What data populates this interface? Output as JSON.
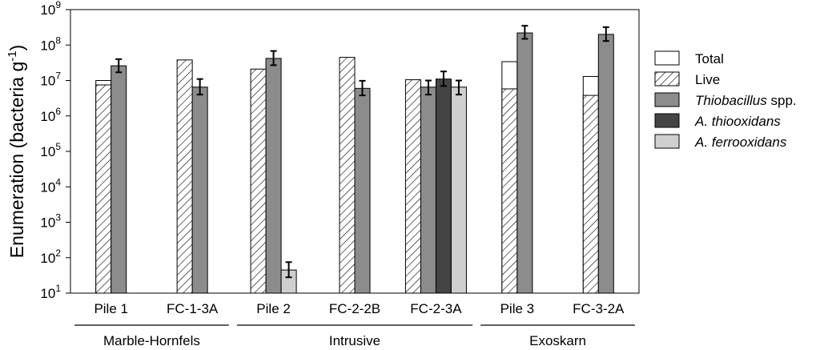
{
  "chart_data": {
    "type": "bar",
    "yscale": "log",
    "ylabel": "Enumeration (bacteria g",
    "ylabel_sup": "-1",
    "ylabel_close": ")",
    "ylim": [
      10,
      1000000000
    ],
    "ytick_base": "10",
    "ytick_exponents": [
      "1",
      "2",
      "3",
      "4",
      "5",
      "6",
      "7",
      "8",
      "9"
    ],
    "categories": [
      "Pile 1",
      "FC-1-3A",
      "Pile 2",
      "FC-2-2B",
      "FC-2-3A",
      "Pile 3",
      "FC-3-2A"
    ],
    "groups": [
      {
        "label": "Marble-Hornfels",
        "categories": [
          "Pile 1",
          "FC-1-3A"
        ]
      },
      {
        "label": "Intrusive",
        "categories": [
          "Pile 2",
          "FC-2-2B",
          "FC-2-3A"
        ]
      },
      {
        "label": "Exoskarn",
        "categories": [
          "Pile 3",
          "FC-3-2A"
        ]
      }
    ],
    "legend_position": "right",
    "series": [
      {
        "name": "Total",
        "italic": false,
        "fill": "#ffffff",
        "values": [
          10000000,
          null,
          null,
          null,
          null,
          34000000,
          13000000
        ],
        "errors": null
      },
      {
        "name": "Live",
        "italic": false,
        "fill": "hatch",
        "values": [
          7500000,
          38000000,
          21000000,
          45000000,
          10500000,
          5800000,
          3800000
        ],
        "errors": null
      },
      {
        "name": "Thiobacillus",
        "suffix": " spp.",
        "italic": true,
        "fill": "#8c8c8c",
        "values": [
          26000000,
          6500000,
          42000000,
          6000000,
          6500000,
          220000000,
          200000000
        ],
        "errors": [
          [
            17000000,
            40000000
          ],
          [
            4000000,
            11000000
          ],
          [
            27000000,
            68000000
          ],
          [
            3800000,
            9800000
          ],
          [
            4000000,
            10000000
          ],
          [
            150000000,
            350000000
          ],
          [
            130000000,
            320000000
          ]
        ]
      },
      {
        "name": "A. thiooxidans",
        "italic": true,
        "fill": "#444444",
        "values": [
          null,
          null,
          null,
          null,
          11000000,
          null,
          null
        ],
        "errors": [
          null,
          null,
          null,
          null,
          [
            7000000,
            18000000
          ],
          null,
          null
        ]
      },
      {
        "name": "A. ferrooxidans",
        "italic": true,
        "fill": "#cfcfcf",
        "values": [
          null,
          null,
          45,
          null,
          6500000,
          null,
          null
        ],
        "errors": [
          null,
          null,
          [
            28,
            75
          ],
          null,
          [
            4000000,
            10000000
          ],
          null,
          null
        ]
      }
    ]
  }
}
